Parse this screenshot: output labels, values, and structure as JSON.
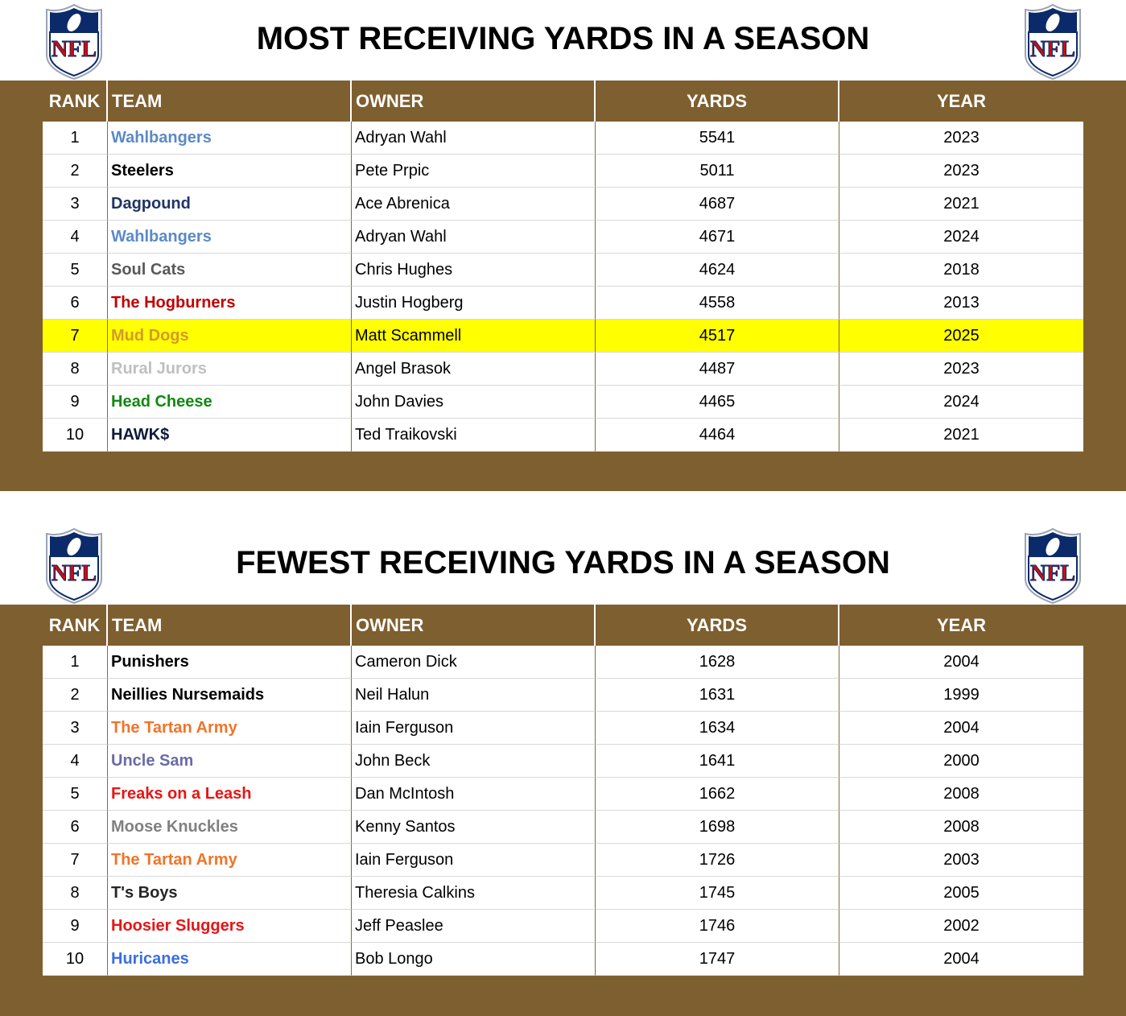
{
  "logo": "NFL",
  "tables": [
    {
      "title": "MOST RECEIVING YARDS IN A SEASON",
      "headers": [
        "RANK",
        "TEAM",
        "OWNER",
        "YARDS",
        "YEAR"
      ],
      "rows": [
        {
          "rank": 1,
          "team": "Wahlbangers",
          "team_color": "#5b8ac6",
          "owner": "Adryan Wahl",
          "yards": 5541,
          "year": 2023
        },
        {
          "rank": 2,
          "team": "Steelers",
          "team_color": "#000000",
          "owner": "Pete Prpic",
          "yards": 5011,
          "year": 2023
        },
        {
          "rank": 3,
          "team": "Dagpound",
          "team_color": "#1f3464",
          "owner": "Ace Abrenica",
          "yards": 4687,
          "year": 2021
        },
        {
          "rank": 4,
          "team": "Wahlbangers",
          "team_color": "#5b8ac6",
          "owner": "Adryan Wahl",
          "yards": 4671,
          "year": 2024
        },
        {
          "rank": 5,
          "team": "Soul Cats",
          "team_color": "#595959",
          "owner": "Chris Hughes",
          "yards": 4624,
          "year": 2018
        },
        {
          "rank": 6,
          "team": "The Hogburners",
          "team_color": "#c00000",
          "owner": "Justin Hogberg",
          "yards": 4558,
          "year": 2013
        },
        {
          "rank": 7,
          "team": "Mud Dogs",
          "team_color": "#d49a2a",
          "owner": "Matt Scammell",
          "yards": 4517,
          "year": 2025,
          "highlight_color": "#ffff00"
        },
        {
          "rank": 8,
          "team": "Rural Jurors",
          "team_color": "#bfbfbf",
          "owner": "Angel Brasok",
          "yards": 4487,
          "year": 2023
        },
        {
          "rank": 9,
          "team": "Head Cheese",
          "team_color": "#108a10",
          "owner": "John Davies",
          "yards": 4465,
          "year": 2024
        },
        {
          "rank": 10,
          "team": "HAWK$",
          "team_color": "#0d1a3a",
          "owner": "Ted Traikovski",
          "yards": 4464,
          "year": 2021
        }
      ]
    },
    {
      "title": "FEWEST RECEIVING YARDS IN A SEASON",
      "headers": [
        "RANK",
        "TEAM",
        "OWNER",
        "YARDS",
        "YEAR"
      ],
      "rows": [
        {
          "rank": 1,
          "team": "Punishers",
          "team_color": "#000000",
          "owner": "Cameron Dick",
          "yards": 1628,
          "year": 2004
        },
        {
          "rank": 2,
          "team": "Neillies Nursemaids",
          "team_color": "#000000",
          "owner": "Neil Halun",
          "yards": 1631,
          "year": 1999
        },
        {
          "rank": 3,
          "team": "The Tartan Army",
          "team_color": "#f07428",
          "owner": "Iain Ferguson",
          "yards": 1634,
          "year": 2004
        },
        {
          "rank": 4,
          "team": "Uncle Sam",
          "team_color": "#6a6aa6",
          "owner": "John Beck",
          "yards": 1641,
          "year": 2000
        },
        {
          "rank": 5,
          "team": "Freaks on a Leash",
          "team_color": "#e81414",
          "owner": "Dan McIntosh",
          "yards": 1662,
          "year": 2008
        },
        {
          "rank": 6,
          "team": "Moose Knuckles",
          "team_color": "#808080",
          "owner": "Kenny Santos",
          "yards": 1698,
          "year": 2008
        },
        {
          "rank": 7,
          "team": "The Tartan Army",
          "team_color": "#f07428",
          "owner": "Iain Ferguson",
          "yards": 1726,
          "year": 2003
        },
        {
          "rank": 8,
          "team": "T's Boys",
          "team_color": "#262626",
          "owner": "Theresia Calkins",
          "yards": 1745,
          "year": 2005
        },
        {
          "rank": 9,
          "team": "Hoosier Sluggers",
          "team_color": "#e81414",
          "owner": "Jeff Peaslee",
          "yards": 1746,
          "year": 2002
        },
        {
          "rank": 10,
          "team": "Huricanes",
          "team_color": "#3a6ee0",
          "owner": "Bob Longo",
          "yards": 1747,
          "year": 2004
        }
      ]
    }
  ]
}
